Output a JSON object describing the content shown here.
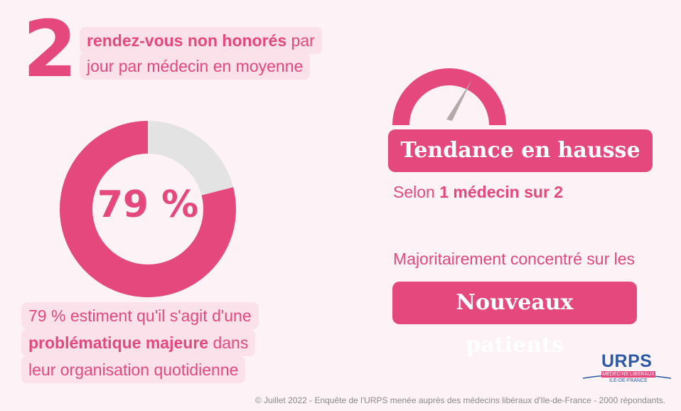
{
  "stat1": {
    "number": "2",
    "bold_text": "rendez-vous non honorés",
    "text_part1": " par",
    "text_line2": "jour par médecin en moyenne"
  },
  "donut": {
    "percent": 79,
    "label": "79 %",
    "fill_color": "#e5487d",
    "track_color": "#e3e3e3"
  },
  "stat2": {
    "line1": "79 % estiment qu'il s'agit d'une",
    "line2_bold": "problématique majeure",
    "line2_rest": " dans",
    "line3": "leur organisation quotidienne"
  },
  "trend": {
    "badge": "Tendance en hausse",
    "selon_prefix": "Selon ",
    "selon_bold": "1 médecin sur 2"
  },
  "concentration": {
    "text": "Majoritairement concentré sur les",
    "badge": "Nouveaux patients"
  },
  "logo": {
    "name": "URPS",
    "line1": "MÉDECINS LIBÉRAUX",
    "line2": "ILE-DE-FRANCE"
  },
  "footer": "© Juillet 2022 - Enquête de l'URPS menée auprès des médecins libéraux d'Ile-de-France - 2000 répondants.",
  "colors": {
    "accent": "#e5487d",
    "background": "#fdf2f5",
    "highlight": "#fbe1e9",
    "needle": "#b7a9a9"
  }
}
